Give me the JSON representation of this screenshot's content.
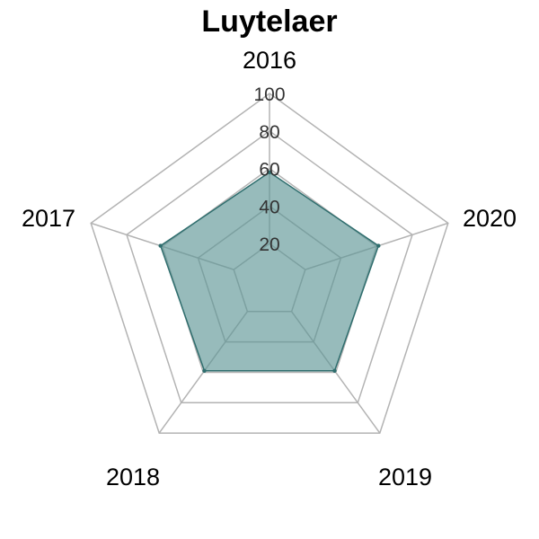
{
  "chart_data": {
    "type": "radar",
    "title": "Luytelaer",
    "categories": [
      "2016",
      "2017",
      "2018",
      "2019",
      "2020"
    ],
    "series": [
      {
        "values": [
          58,
          61,
          59,
          59,
          61
        ]
      }
    ],
    "ticks": [
      "20",
      "40",
      "60",
      "80",
      "100"
    ],
    "rlim": [
      0,
      100
    ],
    "grid": true,
    "colors": {
      "fill": "#5f9696",
      "line": "#2f6e6e",
      "grid": "#b3b3b3"
    }
  }
}
